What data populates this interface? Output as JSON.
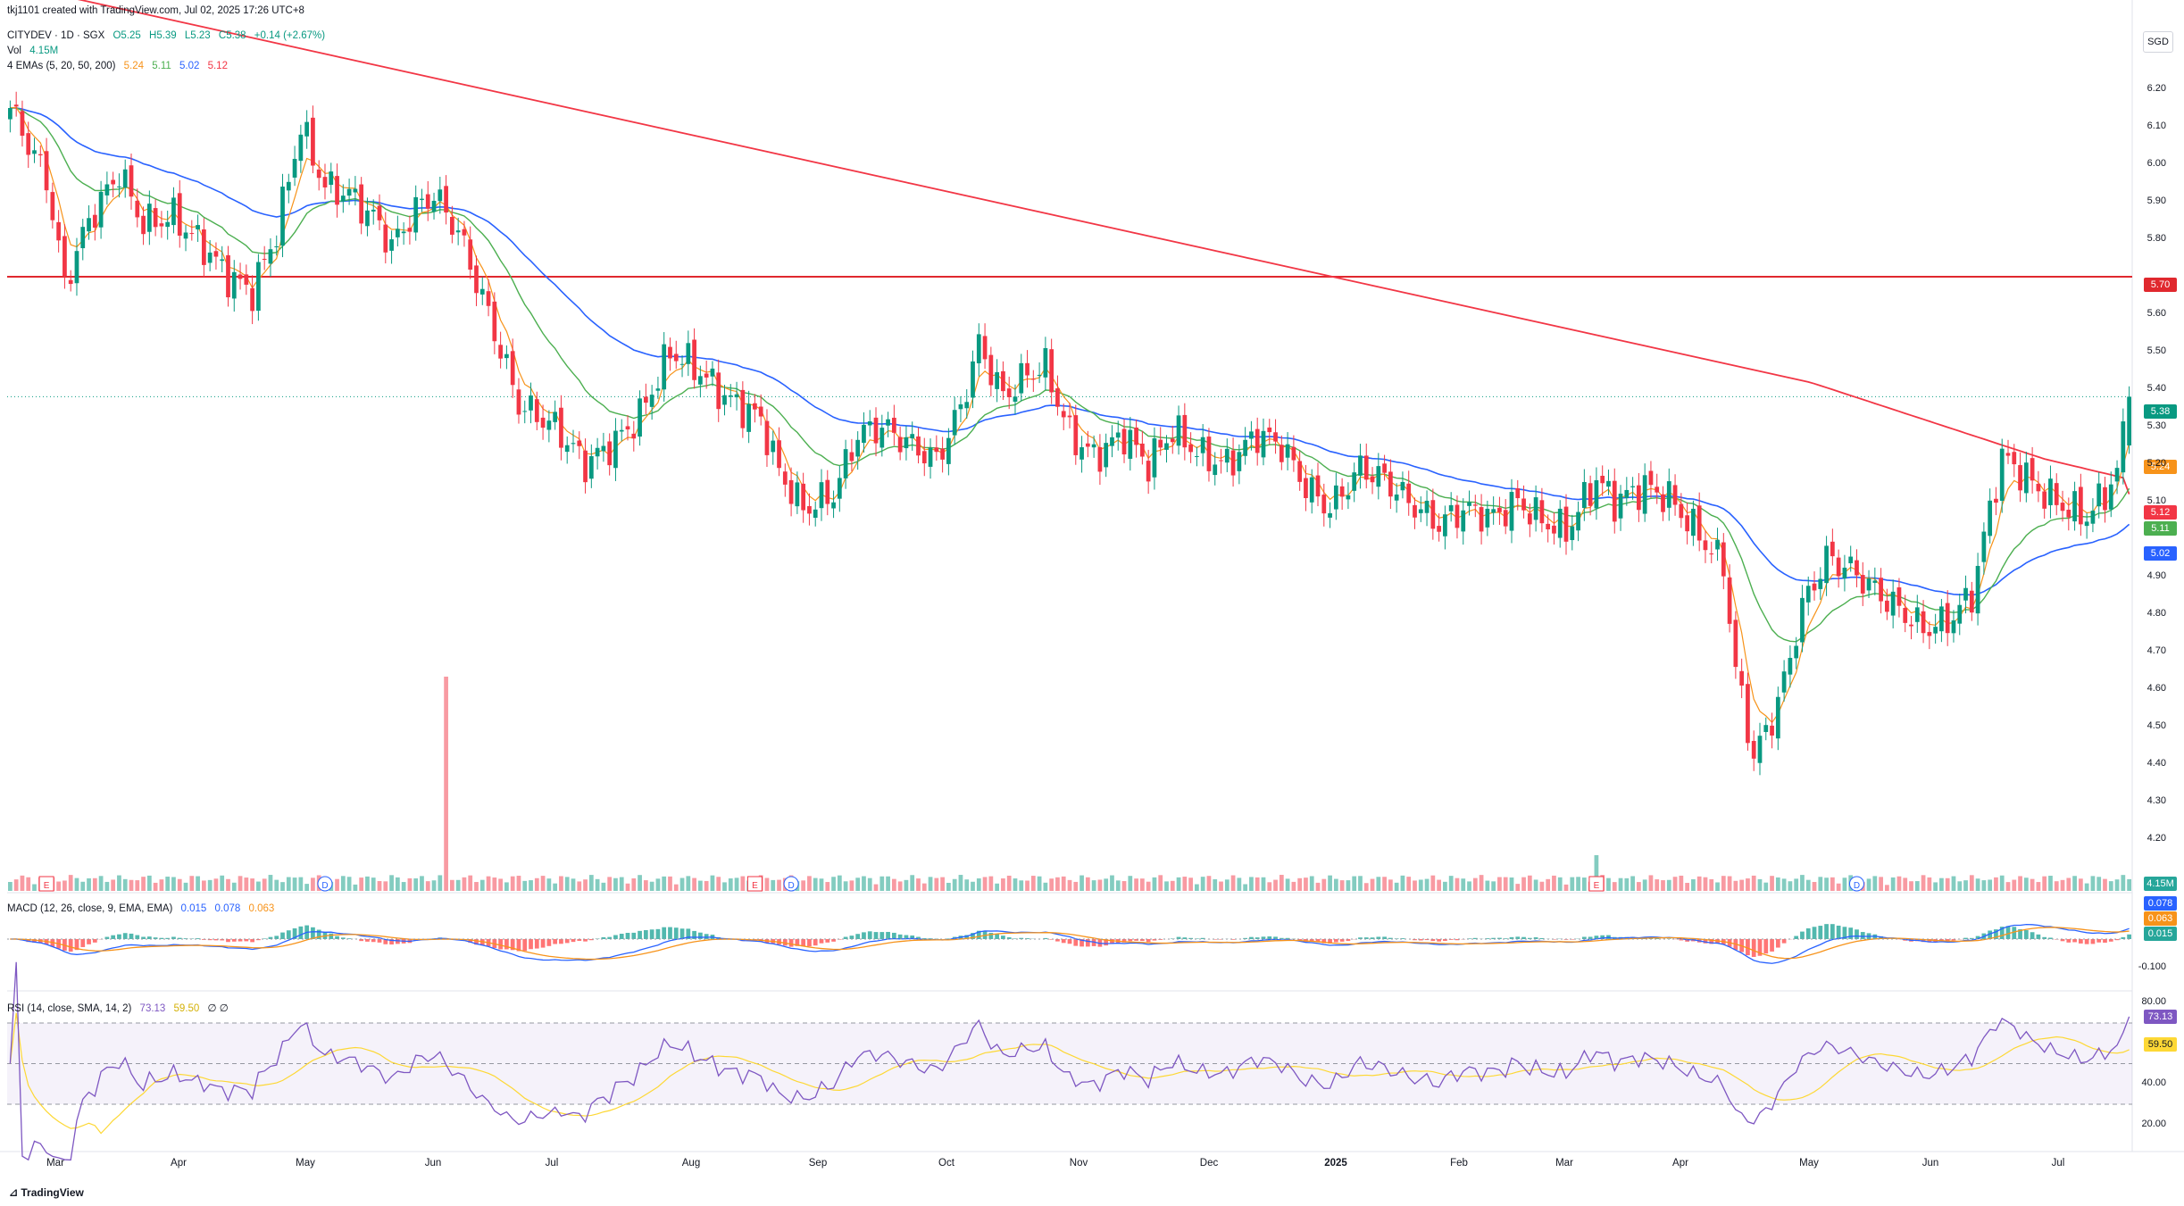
{
  "attribution": "tkj1101 created with TradingView.com, Jul 02, 2025 17:26 UTC+8",
  "symbol_line": {
    "symbol": "CITYDEV · 1D · SGX",
    "open": "O5.25",
    "high": "H5.39",
    "low": "L5.23",
    "close": "C5.38",
    "change": "+0.14 (+2.67%)"
  },
  "volume_line": {
    "label": "Vol",
    "value": "4.15M"
  },
  "ema_line": {
    "label": "4 EMAs (5, 20, 50, 200)",
    "v5": "5.24",
    "v20": "5.11",
    "v50": "5.02",
    "v200": "5.12"
  },
  "macd_line": {
    "label": "MACD (12, 26, close, 9, EMA, EMA)",
    "macd": "0.015",
    "signal": "0.078",
    "hist": "0.063"
  },
  "rsi_line": {
    "label": "RSI (14, close, SMA, 14, 2)",
    "rsi": "73.13",
    "sma": "59.50",
    "extra": "∅ ∅"
  },
  "currency": "SGD",
  "footer": "TradingView",
  "colors": {
    "up": "#089981",
    "down": "#f23645",
    "ema5": "#f7931a",
    "ema20": "#4caf50",
    "ema50": "#2962ff",
    "ema200": "#f23645",
    "resistance": "#e0282e",
    "rsi": "#7e57c2",
    "rsi_sma": "#fdd835"
  },
  "tags": {
    "resistance": "5.70",
    "last": "5.38",
    "ema5": "5.24",
    "ema200": "5.12",
    "ema20": "5.11",
    "ema50": "5.02",
    "volume": "4.15M",
    "macd_signal": "0.078",
    "macd_hist": "0.063",
    "macd_line": "0.015",
    "rsi": "73.13",
    "rsi_sma": "59.50"
  },
  "chart_data": {
    "type": "candlestick",
    "price_axis": {
      "ticks": [
        "6.20",
        "6.10",
        "6.00",
        "5.90",
        "5.80",
        "5.60",
        "5.50",
        "5.40",
        "5.30",
        "5.20",
        "5.10",
        "4.90",
        "4.80",
        "4.70",
        "4.60",
        "4.50",
        "4.40",
        "4.30",
        "4.20"
      ],
      "ylim": [
        4.2,
        6.28
      ]
    },
    "macd_axis": {
      "ticks": [
        "-0.100"
      ]
    },
    "rsi_axis": {
      "ticks": [
        "80.00",
        "40.00",
        "20.00"
      ],
      "bands": [
        70,
        30
      ]
    },
    "x_ticks": [
      "Mar",
      "Apr",
      "May",
      "Jun",
      "Jul",
      "Aug",
      "Sep",
      "Oct",
      "Nov",
      "Dec",
      "2025",
      "Feb",
      "Mar",
      "Apr",
      "May",
      "Jun",
      "Jul"
    ],
    "resistance_level": 5.7,
    "close_path": [
      [
        0,
        6.15
      ],
      [
        6,
        5.96
      ],
      [
        9,
        5.68
      ],
      [
        13,
        5.85
      ],
      [
        18,
        5.98
      ],
      [
        22,
        5.84
      ],
      [
        27,
        5.86
      ],
      [
        32,
        5.78
      ],
      [
        36,
        5.7
      ],
      [
        40,
        5.66
      ],
      [
        44,
        5.82
      ],
      [
        48,
        6.1
      ],
      [
        52,
        5.94
      ],
      [
        56,
        5.92
      ],
      [
        61,
        5.84
      ],
      [
        63,
        5.78
      ],
      [
        67,
        5.88
      ],
      [
        70,
        5.92
      ],
      [
        74,
        5.82
      ],
      [
        79,
        5.6
      ],
      [
        84,
        5.36
      ],
      [
        90,
        5.3
      ],
      [
        95,
        5.2
      ],
      [
        100,
        5.26
      ],
      [
        104,
        5.33
      ],
      [
        109,
        5.5
      ],
      [
        113,
        5.46
      ],
      [
        118,
        5.38
      ],
      [
        124,
        5.32
      ],
      [
        127,
        5.18
      ],
      [
        131,
        5.08
      ],
      [
        136,
        5.12
      ],
      [
        140,
        5.28
      ],
      [
        144,
        5.3
      ],
      [
        149,
        5.25
      ],
      [
        153,
        5.21
      ],
      [
        157,
        5.35
      ],
      [
        160,
        5.52
      ],
      [
        164,
        5.38
      ],
      [
        168,
        5.44
      ],
      [
        171,
        5.46
      ],
      [
        175,
        5.28
      ],
      [
        179,
        5.22
      ],
      [
        184,
        5.28
      ],
      [
        188,
        5.2
      ],
      [
        192,
        5.29
      ],
      [
        197,
        5.22
      ],
      [
        201,
        5.2
      ],
      [
        206,
        5.28
      ],
      [
        210,
        5.25
      ],
      [
        214,
        5.14
      ],
      [
        218,
        5.08
      ],
      [
        223,
        5.19
      ],
      [
        227,
        5.16
      ],
      [
        231,
        5.1
      ],
      [
        236,
        5.04
      ],
      [
        240,
        5.08
      ],
      [
        245,
        5.06
      ],
      [
        249,
        5.1
      ],
      [
        253,
        5.05
      ],
      [
        257,
        5.02
      ],
      [
        262,
        5.16
      ],
      [
        265,
        5.1
      ],
      [
        270,
        5.14
      ],
      [
        274,
        5.11
      ],
      [
        278,
        5.03
      ],
      [
        283,
        4.93
      ],
      [
        285,
        4.65
      ],
      [
        288,
        4.42
      ],
      [
        291,
        4.52
      ],
      [
        293,
        4.62
      ],
      [
        296,
        4.82
      ],
      [
        300,
        4.95
      ],
      [
        304,
        4.92
      ],
      [
        309,
        4.85
      ],
      [
        313,
        4.8
      ],
      [
        316,
        4.76
      ],
      [
        320,
        4.78
      ],
      [
        324,
        4.85
      ],
      [
        327,
        5.08
      ],
      [
        329,
        5.22
      ],
      [
        332,
        5.18
      ],
      [
        336,
        5.12
      ],
      [
        340,
        5.08
      ],
      [
        343,
        5.06
      ],
      [
        346,
        5.12
      ],
      [
        348,
        5.18
      ],
      [
        350,
        5.38
      ]
    ],
    "ema_series": [
      {
        "name": "EMA 5",
        "last": 5.24
      },
      {
        "name": "EMA 20",
        "last": 5.11
      },
      {
        "name": "EMA 50",
        "last": 5.02
      },
      {
        "name": "EMA 200",
        "last": 5.12
      }
    ],
    "events": [
      {
        "label": "E",
        "x": 6
      },
      {
        "label": "D",
        "x": 52
      },
      {
        "label": "E",
        "x": 123
      },
      {
        "label": "D",
        "x": 129
      },
      {
        "label": "E",
        "x": 262
      },
      {
        "label": "D",
        "x": 305
      }
    ],
    "volume": {
      "last": "4.15M",
      "spike_index": 72
    },
    "macd": {
      "macd": 0.015,
      "signal": 0.078,
      "histogram": 0.063
    },
    "rsi": {
      "rsi": 73.13,
      "sma": 59.5
    }
  }
}
